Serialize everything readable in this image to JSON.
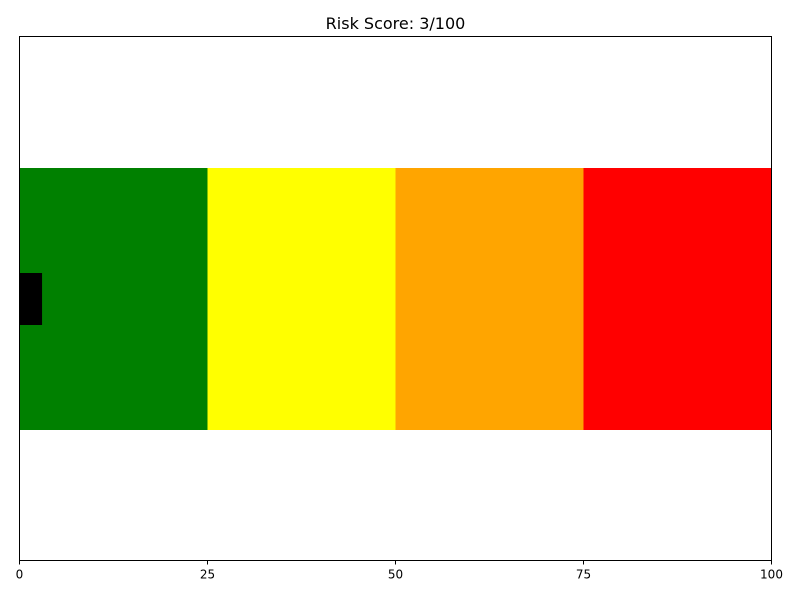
{
  "chart_data": {
    "type": "bar",
    "orientation": "horizontal",
    "title": "Risk Score: 3/100",
    "xlabel": "",
    "ylabel": "",
    "xlim": [
      0,
      100
    ],
    "x_ticks": [
      0,
      25,
      50,
      75,
      100
    ],
    "grid": false,
    "legend": "none",
    "bands": [
      {
        "start": 0,
        "end": 25,
        "color": "#008000"
      },
      {
        "start": 25,
        "end": 50,
        "color": "#ffff00"
      },
      {
        "start": 50,
        "end": 75,
        "color": "#ffa500"
      },
      {
        "start": 75,
        "end": 100,
        "color": "#ff0000"
      }
    ],
    "values": [
      3
    ],
    "marker_color": "#000000"
  }
}
